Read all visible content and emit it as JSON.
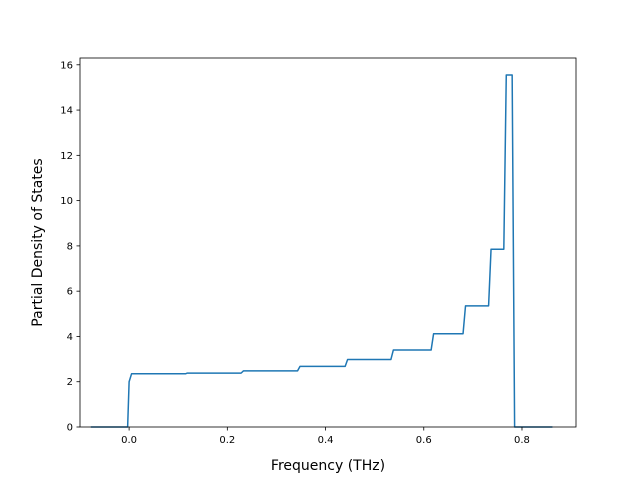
{
  "chart_data": {
    "type": "line",
    "title": "",
    "xlabel": "Frequency (THz)",
    "ylabel": "Partial Density of States",
    "xlim": [
      -0.1,
      0.91
    ],
    "ylim": [
      0,
      16.3
    ],
    "xticks": [
      0.0,
      0.2,
      0.4,
      0.6,
      0.8
    ],
    "xtick_labels": [
      "0.0",
      "0.2",
      "0.4",
      "0.6",
      "0.8"
    ],
    "yticks": [
      0,
      2,
      4,
      6,
      8,
      10,
      12,
      14,
      16
    ],
    "ytick_labels": [
      "0",
      "2",
      "4",
      "6",
      "8",
      "10",
      "12",
      "14",
      "16"
    ],
    "grid": false,
    "legend": "none",
    "series": [
      {
        "color": "#1f77b4",
        "x": [
          -0.078,
          -0.003,
          0.0,
          0.005,
          0.115,
          0.118,
          0.228,
          0.233,
          0.343,
          0.348,
          0.44,
          0.445,
          0.533,
          0.538,
          0.615,
          0.62,
          0.68,
          0.685,
          0.732,
          0.737,
          0.763,
          0.768,
          0.78,
          0.785,
          0.862
        ],
        "y": [
          0,
          0,
          2.0,
          2.35,
          2.35,
          2.38,
          2.38,
          2.48,
          2.48,
          2.68,
          2.68,
          2.98,
          2.98,
          3.4,
          3.4,
          4.12,
          4.12,
          5.35,
          5.35,
          7.85,
          7.85,
          15.55,
          15.55,
          0,
          0
        ]
      }
    ]
  }
}
